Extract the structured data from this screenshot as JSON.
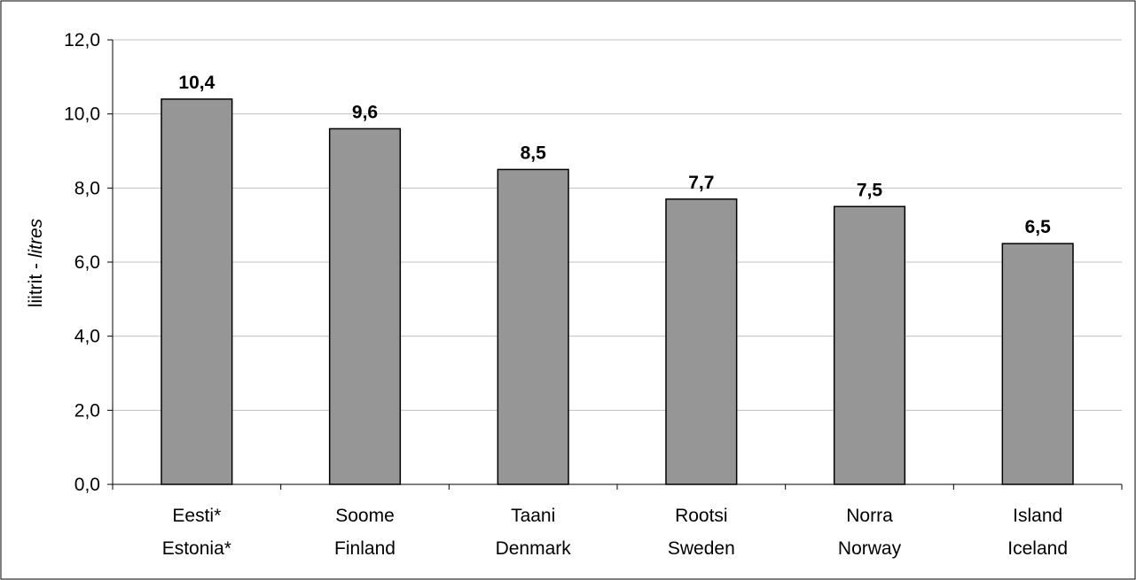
{
  "chart_data": {
    "type": "bar",
    "categories": [
      [
        "Eesti*",
        "Estonia*"
      ],
      [
        "Soome",
        "Finland"
      ],
      [
        "Taani",
        "Denmark"
      ],
      [
        "Rootsi",
        "Sweden"
      ],
      [
        "Norra",
        "Norway"
      ],
      [
        "Island",
        "Iceland"
      ]
    ],
    "values": [
      10.4,
      9.6,
      8.5,
      7.7,
      7.5,
      6.5
    ],
    "data_labels": [
      "10,4",
      "9,6",
      "8,5",
      "7,7",
      "7,5",
      "6,5"
    ],
    "ylabel_main": "liitrit - ",
    "ylabel_italic": "litres",
    "xlabel": "",
    "ylim": [
      0,
      12
    ],
    "yticks": [
      0,
      2,
      4,
      6,
      8,
      10,
      12
    ],
    "ytick_labels": [
      "0,0",
      "2,0",
      "4,0",
      "6,0",
      "8,0",
      "10,0",
      "12,0"
    ],
    "grid": true,
    "legend": "none",
    "bar_color": "#969696",
    "bar_edge_color": "#000000",
    "grid_color": "#c0c0c0"
  }
}
